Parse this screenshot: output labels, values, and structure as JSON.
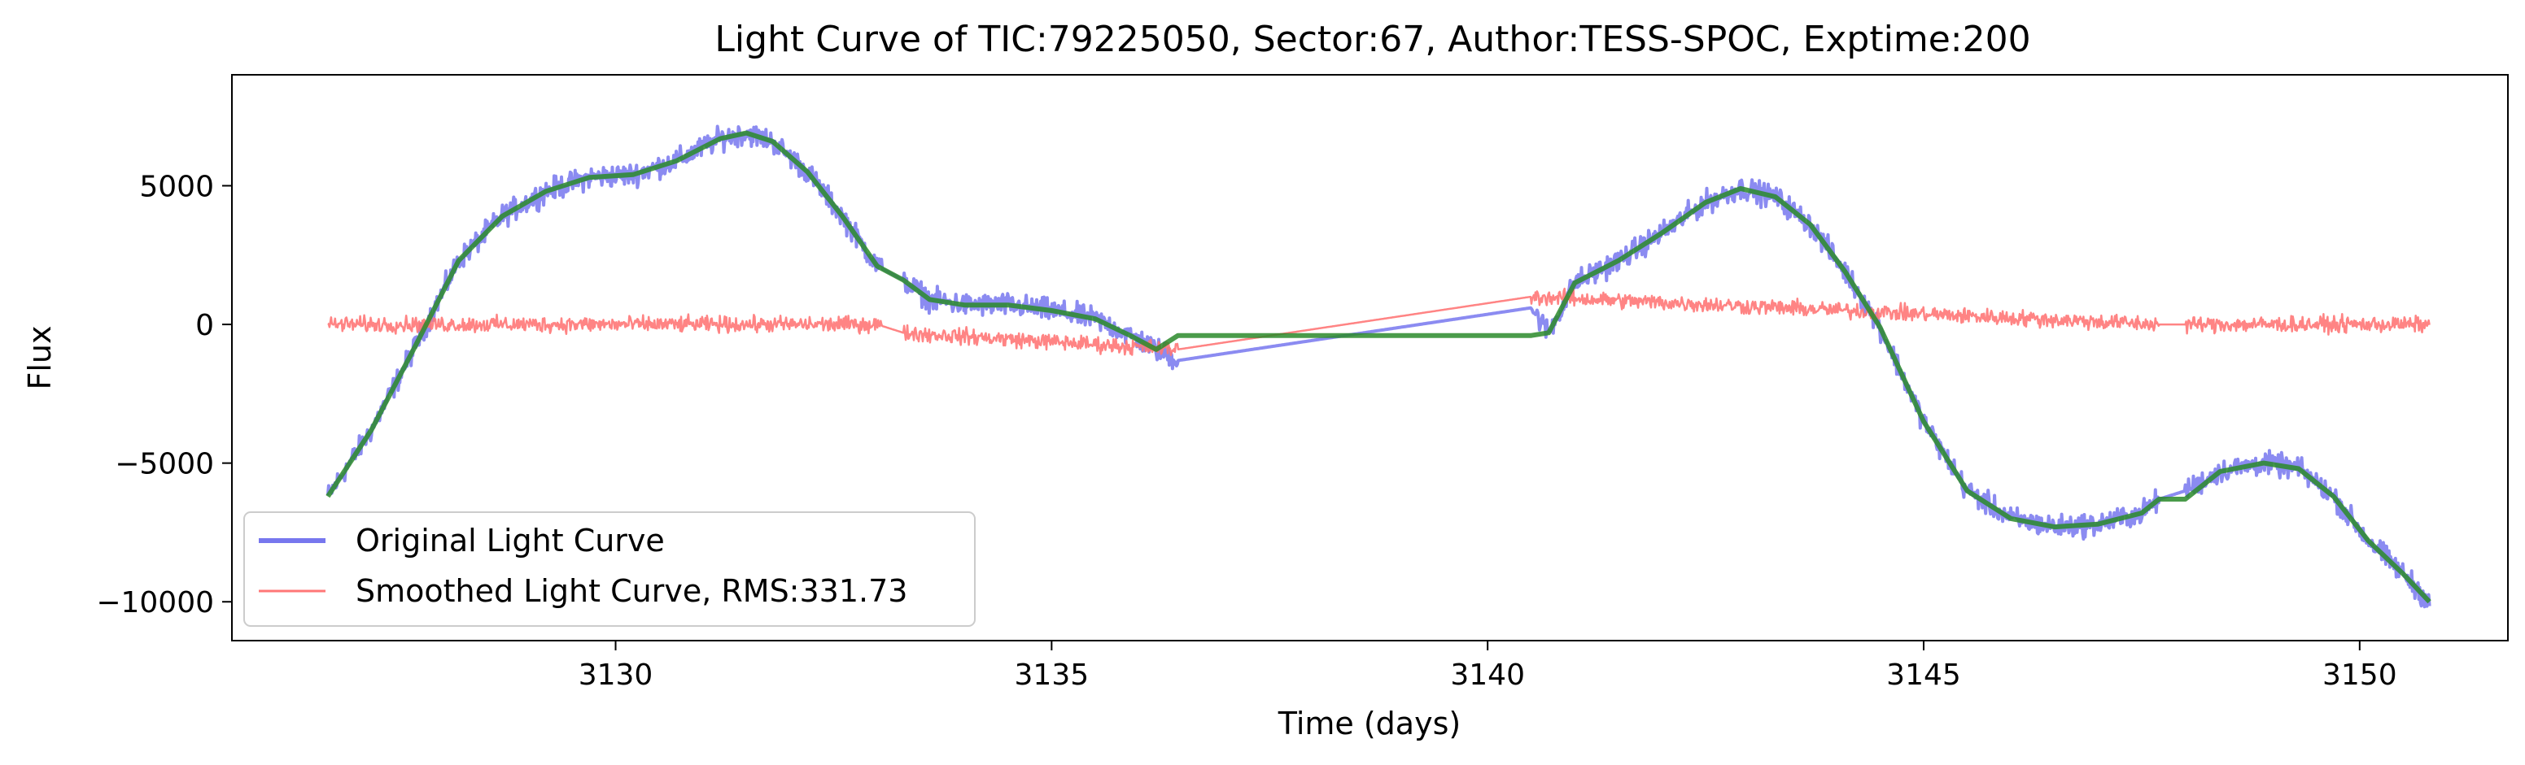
{
  "chart_data": {
    "type": "line",
    "title": "Light Curve of TIC:79225050, Sector:67, Author:TESS-SPOC, Exptime:200",
    "xlabel": "Time (days)",
    "ylabel": "Flux",
    "xlim": [
      3125.6,
      3151.7
    ],
    "ylim": [
      -11400,
      9000
    ],
    "xticks": [
      3130,
      3135,
      3140,
      3145,
      3150
    ],
    "xtick_labels": [
      "3130",
      "3135",
      "3140",
      "3145",
      "3150"
    ],
    "yticks": [
      -10000,
      -5000,
      0,
      5000
    ],
    "ytick_labels": [
      "−10000",
      "−5000",
      "0",
      "5000"
    ],
    "grid": false,
    "legend_position": "lower-left",
    "gaps": [
      [
        3133.05,
        3133.3
      ],
      [
        3136.45,
        3140.5
      ],
      [
        3147.7,
        3148.0
      ]
    ],
    "series": [
      {
        "name": "Original Light Curve",
        "color": "#7777ee",
        "noise_amplitude": 600,
        "x": [
          3126.7,
          3127.2,
          3127.7,
          3128.2,
          3128.7,
          3129.2,
          3129.7,
          3130.2,
          3130.7,
          3131.2,
          3131.5,
          3131.8,
          3132.2,
          3132.6,
          3133.0,
          3133.3,
          3133.6,
          3134.0,
          3134.5,
          3135.0,
          3135.5,
          3135.9,
          3136.2,
          3136.45,
          3140.5,
          3140.7,
          3141.0,
          3141.5,
          3142.0,
          3142.5,
          3142.9,
          3143.3,
          3143.7,
          3144.1,
          3144.5,
          3145.0,
          3145.5,
          3146.0,
          3146.5,
          3147.0,
          3147.5,
          3147.7,
          3148.0,
          3148.4,
          3148.9,
          3149.3,
          3149.7,
          3150.1,
          3150.5,
          3150.8
        ],
        "y": [
          -6200,
          -3800,
          -800,
          2300,
          3900,
          4800,
          5300,
          5400,
          5900,
          6700,
          6900,
          6600,
          5500,
          3900,
          2100,
          1600,
          900,
          700,
          700,
          500,
          200,
          -400,
          -900,
          -1300,
          600,
          -300,
          1500,
          2300,
          3300,
          4400,
          4900,
          4600,
          3600,
          1900,
          -100,
          -3500,
          -6000,
          -7000,
          -7300,
          -7200,
          -6800,
          -6300,
          -6000,
          -5300,
          -5000,
          -5200,
          -6200,
          -7800,
          -9000,
          -10000
        ]
      },
      {
        "name": "Smoothed Light Curve, RMS:331.73",
        "color": "#ff7777",
        "noise_amplitude": 420,
        "x": [
          3126.7,
          3133.0,
          3133.3,
          3136.45,
          3140.5,
          3147.7,
          3148.0,
          3150.8
        ],
        "y": [
          0,
          0,
          -300,
          -900,
          1000,
          0,
          0,
          0
        ]
      },
      {
        "color": "#2a8a2a",
        "x": [
          3126.7,
          3127.2,
          3127.7,
          3128.2,
          3128.7,
          3129.2,
          3129.7,
          3130.2,
          3130.7,
          3131.2,
          3131.5,
          3131.8,
          3132.2,
          3132.6,
          3133.0,
          3133.3,
          3133.6,
          3134.0,
          3134.5,
          3135.0,
          3135.5,
          3135.9,
          3136.2,
          3136.45,
          3140.5,
          3140.7,
          3141.0,
          3141.5,
          3142.0,
          3142.5,
          3142.9,
          3143.3,
          3143.7,
          3144.1,
          3144.5,
          3145.0,
          3145.5,
          3146.0,
          3146.5,
          3147.0,
          3147.5,
          3147.7,
          3148.0,
          3148.4,
          3148.9,
          3149.3,
          3149.7,
          3150.1,
          3150.5,
          3150.8
        ],
        "y": [
          -6200,
          -3800,
          -800,
          2300,
          3900,
          4800,
          5300,
          5400,
          5900,
          6700,
          6900,
          6600,
          5500,
          3900,
          2100,
          1600,
          900,
          700,
          700,
          500,
          200,
          -400,
          -900,
          -400,
          -400,
          -300,
          1500,
          2300,
          3300,
          4400,
          4900,
          4600,
          3600,
          1900,
          -100,
          -3500,
          -6000,
          -7000,
          -7300,
          -7200,
          -6800,
          -6300,
          -6300,
          -5300,
          -5000,
          -5200,
          -6200,
          -7800,
          -9000,
          -10000
        ]
      }
    ],
    "legend": [
      {
        "label": "Original Light Curve",
        "color": "#7777ee"
      },
      {
        "label": "Smoothed Light Curve, RMS:331.73",
        "color": "#ff7777"
      }
    ]
  }
}
